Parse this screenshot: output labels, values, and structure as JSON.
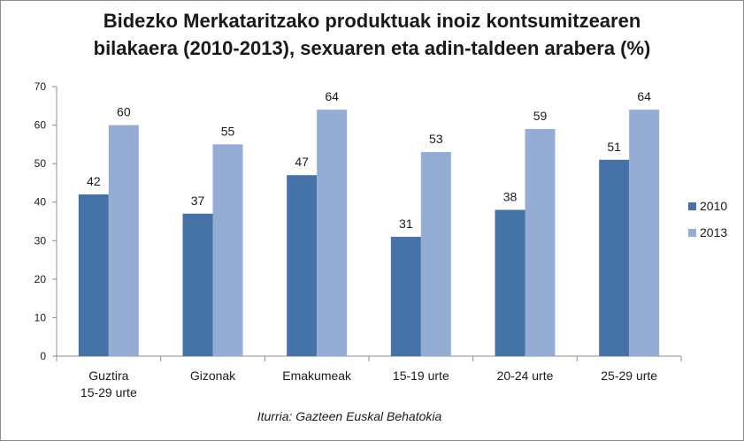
{
  "chart_data": {
    "type": "bar",
    "title_lines": [
      "Bidezko Merkataritzako produktuak inoiz kontsumitzearen",
      "bilakaera (2010-2013), sexuaren eta adin-taldeen arabera (%)"
    ],
    "categories": [
      [
        "Guztira",
        "15-29 urte"
      ],
      [
        "Gizonak"
      ],
      [
        "Emakumeak"
      ],
      [
        "15-19 urte"
      ],
      [
        "20-24 urte"
      ],
      [
        "25-29 urte"
      ]
    ],
    "series": [
      {
        "name": "2010",
        "color": "#4572a7",
        "values": [
          42,
          37,
          47,
          31,
          38,
          51
        ]
      },
      {
        "name": "2013",
        "color": "#95add5",
        "values": [
          60,
          55,
          64,
          53,
          59,
          64
        ]
      }
    ],
    "ylim": [
      0,
      70
    ],
    "yticks": [
      0,
      10,
      20,
      30,
      40,
      50,
      60,
      70
    ],
    "grid": false,
    "legend": "right",
    "source": "Iturria: Gazteen Euskal Behatokia"
  }
}
